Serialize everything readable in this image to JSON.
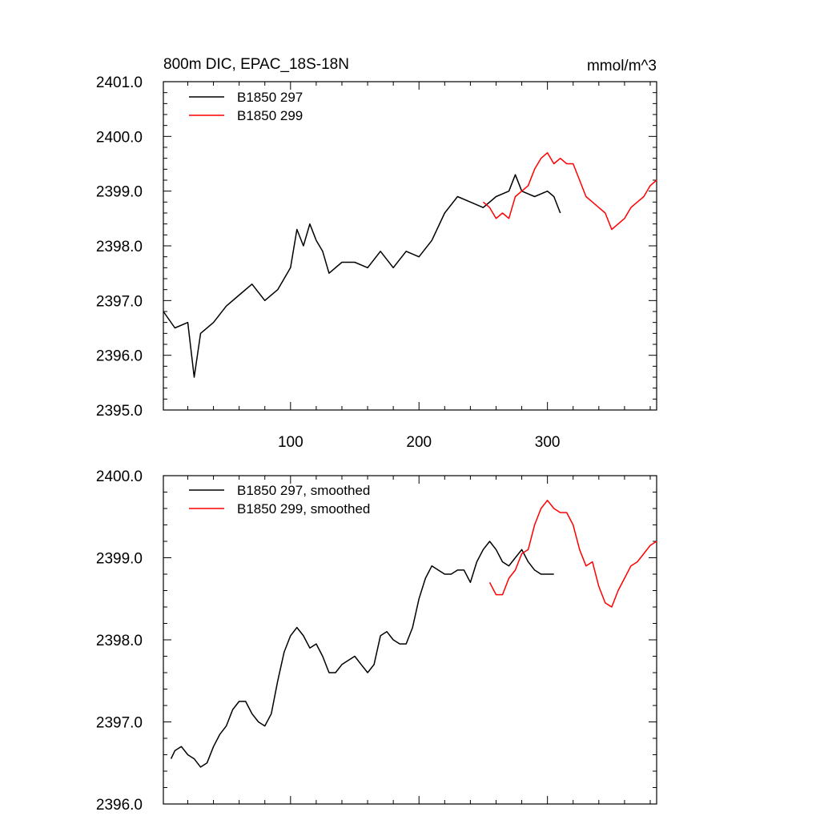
{
  "chart_data": [
    {
      "type": "line",
      "title": "800m DIC, EPAC_18S-18N",
      "units": "mmol/m^3",
      "xlabel": "",
      "ylabel": "",
      "xlim": [
        1,
        385
      ],
      "ylim": [
        2395.0,
        2401.0
      ],
      "xticks": [
        100,
        200,
        300
      ],
      "yticks": [
        2395.0,
        2396.0,
        2397.0,
        2398.0,
        2399.0,
        2400.0,
        2401.0
      ],
      "ytick_labels": [
        "2395.0",
        "2396.0",
        "2397.0",
        "2398.0",
        "2399.0",
        "2400.0",
        "2401.0"
      ],
      "xtick_labels": [
        "100",
        "200",
        "300"
      ],
      "legend_position": "top-left",
      "series": [
        {
          "name": "B1850 297",
          "color": "#000000",
          "x": [
            1,
            10,
            20,
            25,
            30,
            40,
            50,
            60,
            70,
            80,
            90,
            100,
            105,
            110,
            115,
            120,
            125,
            130,
            140,
            150,
            160,
            170,
            180,
            190,
            200,
            210,
            220,
            230,
            240,
            250,
            260,
            270,
            275,
            280,
            290,
            300,
            305,
            310
          ],
          "y": [
            2396.8,
            2396.5,
            2396.6,
            2395.6,
            2396.4,
            2396.6,
            2396.9,
            2397.1,
            2397.3,
            2397.0,
            2397.2,
            2397.6,
            2398.3,
            2398.0,
            2398.4,
            2398.1,
            2397.9,
            2397.5,
            2397.7,
            2397.7,
            2397.6,
            2397.9,
            2397.6,
            2397.9,
            2397.8,
            2398.1,
            2398.6,
            2398.9,
            2398.8,
            2398.7,
            2398.9,
            2399.0,
            2399.3,
            2399.0,
            2398.9,
            2399.0,
            2398.9,
            2398.6
          ]
        },
        {
          "name": "B1850 299",
          "color": "#ff0000",
          "x": [
            250,
            255,
            260,
            265,
            270,
            275,
            280,
            285,
            290,
            295,
            300,
            305,
            310,
            315,
            320,
            325,
            330,
            335,
            340,
            345,
            350,
            355,
            360,
            365,
            370,
            375,
            380,
            385
          ],
          "y": [
            2398.8,
            2398.7,
            2398.5,
            2398.6,
            2398.5,
            2398.9,
            2399.0,
            2399.1,
            2399.4,
            2399.6,
            2399.7,
            2399.5,
            2399.6,
            2399.5,
            2399.5,
            2399.2,
            2398.9,
            2398.8,
            2398.7,
            2398.6,
            2398.3,
            2398.4,
            2398.5,
            2398.7,
            2398.8,
            2398.9,
            2399.1,
            2399.2
          ]
        }
      ]
    },
    {
      "type": "line",
      "title": "",
      "xlabel": "",
      "ylabel": "",
      "xlim": [
        1,
        385
      ],
      "ylim": [
        2396.0,
        2400.0
      ],
      "yticks": [
        2396.0,
        2397.0,
        2398.0,
        2399.0,
        2400.0
      ],
      "ytick_labels": [
        "2396.0",
        "2397.0",
        "2398.0",
        "2399.0",
        "2400.0"
      ],
      "legend_position": "top-left",
      "series": [
        {
          "name": "B1850 297, smoothed",
          "color": "#000000",
          "x": [
            7,
            10,
            15,
            20,
            25,
            30,
            35,
            40,
            45,
            50,
            55,
            60,
            65,
            70,
            75,
            80,
            85,
            90,
            95,
            100,
            105,
            110,
            115,
            120,
            125,
            130,
            135,
            140,
            145,
            150,
            155,
            160,
            165,
            170,
            175,
            180,
            185,
            190,
            195,
            200,
            205,
            210,
            215,
            220,
            225,
            230,
            235,
            240,
            245,
            250,
            255,
            260,
            265,
            270,
            275,
            280,
            285,
            290,
            295,
            300,
            305
          ],
          "y": [
            2396.55,
            2396.65,
            2396.7,
            2396.6,
            2396.55,
            2396.45,
            2396.5,
            2396.7,
            2396.85,
            2396.95,
            2397.15,
            2397.25,
            2397.25,
            2397.1,
            2397.0,
            2396.95,
            2397.1,
            2397.5,
            2397.85,
            2398.05,
            2398.15,
            2398.05,
            2397.9,
            2397.95,
            2397.8,
            2397.6,
            2397.6,
            2397.7,
            2397.75,
            2397.8,
            2397.7,
            2397.6,
            2397.7,
            2398.05,
            2398.1,
            2398.0,
            2397.95,
            2397.95,
            2398.15,
            2398.5,
            2398.75,
            2398.9,
            2398.85,
            2398.8,
            2398.8,
            2398.85,
            2398.85,
            2398.7,
            2398.95,
            2399.1,
            2399.2,
            2399.1,
            2398.95,
            2398.9,
            2399.0,
            2399.1,
            2398.95,
            2398.85,
            2398.8,
            2398.8,
            2398.8
          ]
        },
        {
          "name": "B1850 299, smoothed",
          "color": "#ff0000",
          "x": [
            255,
            260,
            265,
            270,
            275,
            280,
            285,
            290,
            295,
            300,
            305,
            310,
            315,
            320,
            325,
            330,
            335,
            340,
            345,
            350,
            355,
            360,
            365,
            370,
            375,
            380,
            385
          ],
          "y": [
            2398.7,
            2398.55,
            2398.55,
            2398.75,
            2398.85,
            2399.05,
            2399.1,
            2399.4,
            2399.6,
            2399.7,
            2399.6,
            2399.55,
            2399.55,
            2399.4,
            2399.1,
            2398.9,
            2398.95,
            2398.65,
            2398.45,
            2398.4,
            2398.6,
            2398.75,
            2398.9,
            2398.95,
            2399.05,
            2399.15,
            2399.2
          ]
        }
      ]
    }
  ]
}
